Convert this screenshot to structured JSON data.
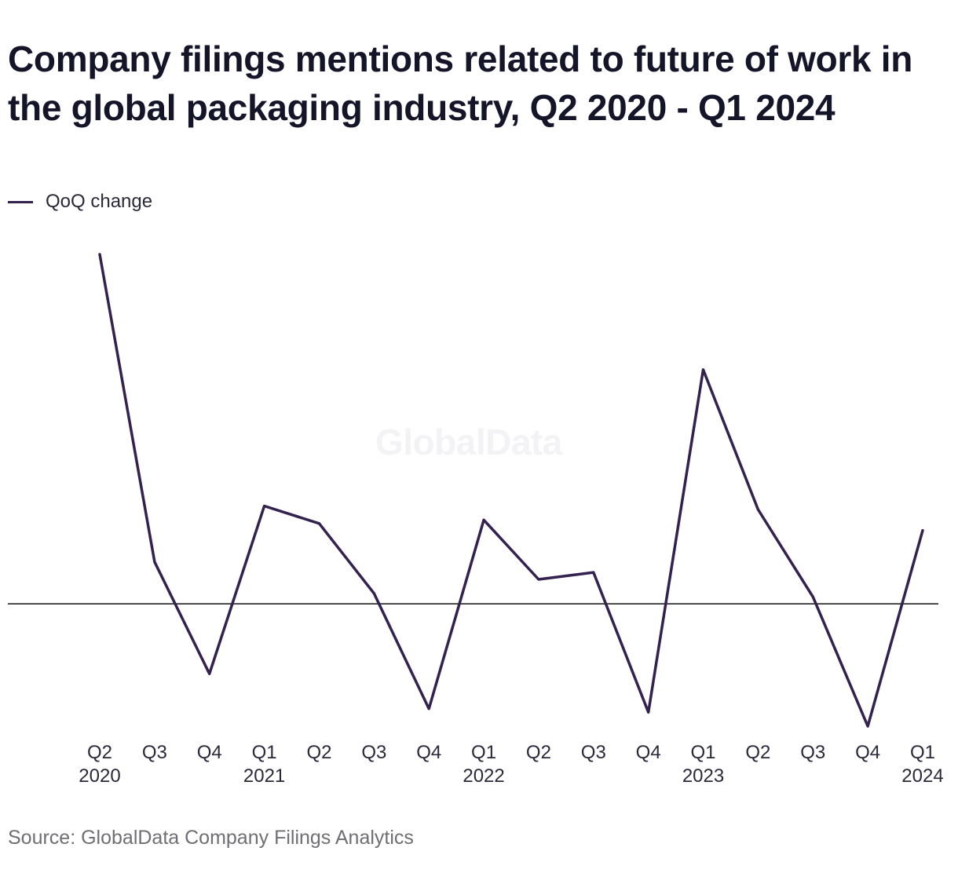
{
  "title": "Company filings mentions related to future of work in the global packaging industry, Q2 2020 - Q1 2024",
  "legend": {
    "label": "QoQ change",
    "color": "#33214f"
  },
  "watermark": "GlobalData",
  "source": "Source: GlobalData Company Filings Analytics",
  "chart_data": {
    "type": "line",
    "title": "Company filings mentions related to future of work in the global packaging industry, Q2 2020 - Q1 2024",
    "xlabel": "",
    "ylabel": "",
    "grid": false,
    "zero_line": true,
    "legend_position": "top-left",
    "categories": [
      {
        "quarter": "Q2",
        "year": "2020"
      },
      {
        "quarter": "Q3",
        "year": ""
      },
      {
        "quarter": "Q4",
        "year": ""
      },
      {
        "quarter": "Q1",
        "year": "2021"
      },
      {
        "quarter": "Q2",
        "year": ""
      },
      {
        "quarter": "Q3",
        "year": ""
      },
      {
        "quarter": "Q4",
        "year": ""
      },
      {
        "quarter": "Q1",
        "year": "2022"
      },
      {
        "quarter": "Q2",
        "year": ""
      },
      {
        "quarter": "Q3",
        "year": ""
      },
      {
        "quarter": "Q4",
        "year": ""
      },
      {
        "quarter": "Q1",
        "year": "2023"
      },
      {
        "quarter": "Q2",
        "year": ""
      },
      {
        "quarter": "Q3",
        "year": ""
      },
      {
        "quarter": "Q4",
        "year": ""
      },
      {
        "quarter": "Q1",
        "year": "2024"
      }
    ],
    "ylim": [
      -0.35,
      1.0
    ],
    "series": [
      {
        "name": "QoQ change",
        "color": "#33214f",
        "values": [
          1.0,
          0.12,
          -0.2,
          0.28,
          0.23,
          0.03,
          -0.3,
          0.24,
          0.07,
          0.09,
          -0.31,
          0.67,
          0.27,
          0.02,
          -0.35,
          0.21
        ]
      }
    ]
  }
}
